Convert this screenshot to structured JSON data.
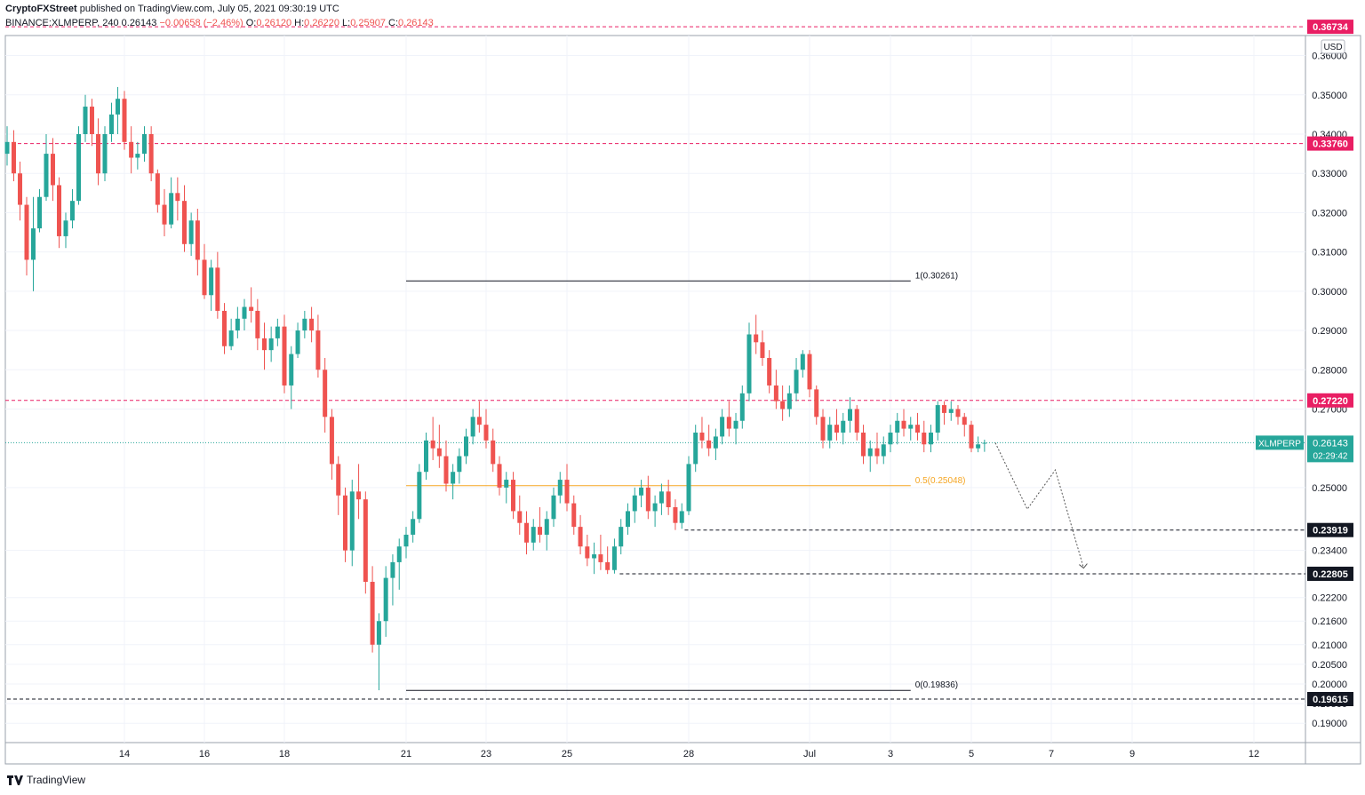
{
  "header": {
    "line1": {
      "author": "CryptoFXStreet",
      "text": "published on TradingView.com, July 05, 2021 09:30:19 UTC"
    },
    "line2": {
      "symbol": "BINANCE:XLMPERP, 240",
      "price": "0.26143",
      "change": "−0.00658 (−2.46%)",
      "o_label": "O:",
      "o_val": "0.26120",
      "h_label": "H:",
      "h_val": "0.26220",
      "l_label": "L:",
      "l_val": "0.25907",
      "c_label": "C:",
      "c_val": "0.26143"
    }
  },
  "footer": {
    "brand": "TradingView"
  },
  "colors": {
    "up": "#26a69a",
    "down": "#ef5350",
    "resistance": "#e91e63",
    "fib_mid": "#f5a623",
    "support": "#131722",
    "current_price": "#26a69a"
  },
  "chart_data": {
    "type": "candlestick",
    "currency": "USD",
    "ylim": [
      0.185,
      0.372
    ],
    "y_ticks": [
      "0.36000",
      "0.35000",
      "0.34000",
      "0.33000",
      "0.32000",
      "0.31000",
      "0.30000",
      "0.29000",
      "0.28000",
      "0.27000",
      "0.25000",
      "0.23400",
      "0.22200",
      "0.21600",
      "0.21000",
      "0.20500",
      "0.20000",
      "0.19500",
      "0.19000"
    ],
    "x_ticks": [
      {
        "label": "14",
        "day": 14
      },
      {
        "label": "16",
        "day": 16
      },
      {
        "label": "18",
        "day": 18
      },
      {
        "label": "21",
        "day": 21
      },
      {
        "label": "23",
        "day": 23
      },
      {
        "label": "25",
        "day": 25
      },
      {
        "label": "28",
        "day": 28
      },
      {
        "label": "Jul",
        "day": 31
      },
      {
        "label": "3",
        "day": 33
      },
      {
        "label": "5",
        "day": 35
      },
      {
        "label": "7",
        "day": 37
      },
      {
        "label": "9",
        "day": 39
      },
      {
        "label": "12",
        "day": 42
      }
    ],
    "horizontal_levels": [
      {
        "label": "0.36734",
        "value": 0.36734,
        "style": "resistance"
      },
      {
        "label": "0.33760",
        "value": 0.3376,
        "style": "resistance"
      },
      {
        "label": "0.27220",
        "value": 0.2722,
        "style": "resistance"
      },
      {
        "label": "0.23919",
        "value": 0.23919,
        "style": "support",
        "from_day": 27.9
      },
      {
        "label": "0.22805",
        "value": 0.22805,
        "style": "support",
        "from_day": 26.3
      },
      {
        "label": "0.19615",
        "value": 0.19615,
        "style": "support",
        "from_day": 11
      }
    ],
    "fib_levels": [
      {
        "label": "1(0.30261)",
        "value": 0.30261,
        "color": "#131722"
      },
      {
        "label": "0.5(0.25048)",
        "value": 0.25048,
        "color": "#f5a623"
      },
      {
        "label": "0(0.19836)",
        "value": 0.19836,
        "color": "#131722"
      }
    ],
    "fib_range_days": [
      21.0,
      33.5
    ],
    "current_price": {
      "symbol": "XLMPERP",
      "value": 0.26143,
      "countdown": "02:29:42"
    },
    "projection": [
      [
        35.6,
        0.2614
      ],
      [
        36.4,
        0.2445
      ],
      [
        37.1,
        0.2545
      ],
      [
        37.8,
        0.2295
      ]
    ],
    "candles_daily": [
      {
        "day": 11.0,
        "o": 0.335,
        "h": 0.342,
        "l": 0.332,
        "c": 0.338
      },
      {
        "day": 11.17,
        "o": 0.338,
        "h": 0.341,
        "l": 0.328,
        "c": 0.33
      },
      {
        "day": 11.33,
        "o": 0.33,
        "h": 0.333,
        "l": 0.318,
        "c": 0.322
      },
      {
        "day": 11.5,
        "o": 0.322,
        "h": 0.324,
        "l": 0.304,
        "c": 0.308
      },
      {
        "day": 11.67,
        "o": 0.308,
        "h": 0.324,
        "l": 0.3,
        "c": 0.316
      },
      {
        "day": 11.83,
        "o": 0.316,
        "h": 0.326,
        "l": 0.315,
        "c": 0.324
      },
      {
        "day": 12.0,
        "o": 0.324,
        "h": 0.34,
        "l": 0.323,
        "c": 0.335
      },
      {
        "day": 12.17,
        "o": 0.335,
        "h": 0.339,
        "l": 0.323,
        "c": 0.327
      },
      {
        "day": 12.33,
        "o": 0.327,
        "h": 0.329,
        "l": 0.311,
        "c": 0.314
      },
      {
        "day": 12.5,
        "o": 0.314,
        "h": 0.32,
        "l": 0.311,
        "c": 0.318
      },
      {
        "day": 12.67,
        "o": 0.318,
        "h": 0.326,
        "l": 0.316,
        "c": 0.323
      },
      {
        "day": 12.83,
        "o": 0.323,
        "h": 0.342,
        "l": 0.322,
        "c": 0.34
      },
      {
        "day": 13.0,
        "o": 0.34,
        "h": 0.35,
        "l": 0.338,
        "c": 0.347
      },
      {
        "day": 13.17,
        "o": 0.347,
        "h": 0.349,
        "l": 0.337,
        "c": 0.34
      },
      {
        "day": 13.33,
        "o": 0.34,
        "h": 0.344,
        "l": 0.327,
        "c": 0.33
      },
      {
        "day": 13.5,
        "o": 0.33,
        "h": 0.342,
        "l": 0.328,
        "c": 0.34
      },
      {
        "day": 13.67,
        "o": 0.34,
        "h": 0.348,
        "l": 0.338,
        "c": 0.345
      },
      {
        "day": 13.83,
        "o": 0.345,
        "h": 0.352,
        "l": 0.34,
        "c": 0.349
      },
      {
        "day": 14.0,
        "o": 0.349,
        "h": 0.351,
        "l": 0.336,
        "c": 0.338
      },
      {
        "day": 14.17,
        "o": 0.338,
        "h": 0.342,
        "l": 0.33,
        "c": 0.334
      },
      {
        "day": 14.33,
        "o": 0.334,
        "h": 0.338,
        "l": 0.331,
        "c": 0.335
      },
      {
        "day": 14.5,
        "o": 0.335,
        "h": 0.342,
        "l": 0.333,
        "c": 0.34
      },
      {
        "day": 14.67,
        "o": 0.34,
        "h": 0.342,
        "l": 0.328,
        "c": 0.33
      },
      {
        "day": 14.83,
        "o": 0.33,
        "h": 0.331,
        "l": 0.32,
        "c": 0.322
      },
      {
        "day": 15.0,
        "o": 0.322,
        "h": 0.326,
        "l": 0.314,
        "c": 0.317
      },
      {
        "day": 15.17,
        "o": 0.317,
        "h": 0.329,
        "l": 0.316,
        "c": 0.325
      },
      {
        "day": 15.33,
        "o": 0.325,
        "h": 0.329,
        "l": 0.318,
        "c": 0.323
      },
      {
        "day": 15.5,
        "o": 0.323,
        "h": 0.327,
        "l": 0.31,
        "c": 0.312
      },
      {
        "day": 15.67,
        "o": 0.312,
        "h": 0.32,
        "l": 0.309,
        "c": 0.318
      },
      {
        "day": 15.83,
        "o": 0.318,
        "h": 0.321,
        "l": 0.304,
        "c": 0.308
      },
      {
        "day": 16.0,
        "o": 0.308,
        "h": 0.312,
        "l": 0.298,
        "c": 0.299
      },
      {
        "day": 16.17,
        "o": 0.299,
        "h": 0.308,
        "l": 0.295,
        "c": 0.306
      },
      {
        "day": 16.33,
        "o": 0.306,
        "h": 0.31,
        "l": 0.293,
        "c": 0.295
      },
      {
        "day": 16.5,
        "o": 0.295,
        "h": 0.297,
        "l": 0.284,
        "c": 0.286
      },
      {
        "day": 16.67,
        "o": 0.286,
        "h": 0.293,
        "l": 0.285,
        "c": 0.29
      },
      {
        "day": 16.83,
        "o": 0.29,
        "h": 0.296,
        "l": 0.288,
        "c": 0.293
      },
      {
        "day": 17.0,
        "o": 0.293,
        "h": 0.298,
        "l": 0.29,
        "c": 0.296
      },
      {
        "day": 17.17,
        "o": 0.296,
        "h": 0.301,
        "l": 0.292,
        "c": 0.295
      },
      {
        "day": 17.33,
        "o": 0.295,
        "h": 0.298,
        "l": 0.285,
        "c": 0.288
      },
      {
        "day": 17.5,
        "o": 0.288,
        "h": 0.292,
        "l": 0.28,
        "c": 0.285
      },
      {
        "day": 17.67,
        "o": 0.285,
        "h": 0.291,
        "l": 0.282,
        "c": 0.288
      },
      {
        "day": 17.83,
        "o": 0.288,
        "h": 0.293,
        "l": 0.286,
        "c": 0.291
      },
      {
        "day": 18.0,
        "o": 0.291,
        "h": 0.294,
        "l": 0.274,
        "c": 0.276
      },
      {
        "day": 18.17,
        "o": 0.276,
        "h": 0.286,
        "l": 0.27,
        "c": 0.284
      },
      {
        "day": 18.33,
        "o": 0.284,
        "h": 0.292,
        "l": 0.283,
        "c": 0.29
      },
      {
        "day": 18.5,
        "o": 0.29,
        "h": 0.295,
        "l": 0.288,
        "c": 0.293
      },
      {
        "day": 18.67,
        "o": 0.293,
        "h": 0.296,
        "l": 0.287,
        "c": 0.29
      },
      {
        "day": 18.83,
        "o": 0.29,
        "h": 0.294,
        "l": 0.278,
        "c": 0.28
      },
      {
        "day": 19.0,
        "o": 0.28,
        "h": 0.283,
        "l": 0.264,
        "c": 0.268
      },
      {
        "day": 19.17,
        "o": 0.268,
        "h": 0.27,
        "l": 0.252,
        "c": 0.256
      },
      {
        "day": 19.33,
        "o": 0.256,
        "h": 0.258,
        "l": 0.243,
        "c": 0.248
      },
      {
        "day": 19.5,
        "o": 0.248,
        "h": 0.25,
        "l": 0.231,
        "c": 0.234
      },
      {
        "day": 19.67,
        "o": 0.234,
        "h": 0.252,
        "l": 0.23,
        "c": 0.249
      },
      {
        "day": 19.83,
        "o": 0.249,
        "h": 0.256,
        "l": 0.242,
        "c": 0.247
      },
      {
        "day": 20.0,
        "o": 0.247,
        "h": 0.249,
        "l": 0.223,
        "c": 0.226
      },
      {
        "day": 20.17,
        "o": 0.226,
        "h": 0.23,
        "l": 0.208,
        "c": 0.21
      },
      {
        "day": 20.33,
        "o": 0.21,
        "h": 0.218,
        "l": 0.1984,
        "c": 0.216
      },
      {
        "day": 20.5,
        "o": 0.216,
        "h": 0.23,
        "l": 0.212,
        "c": 0.227
      },
      {
        "day": 20.67,
        "o": 0.227,
        "h": 0.233,
        "l": 0.22,
        "c": 0.231
      },
      {
        "day": 20.83,
        "o": 0.231,
        "h": 0.237,
        "l": 0.224,
        "c": 0.235
      }
    ]
  }
}
